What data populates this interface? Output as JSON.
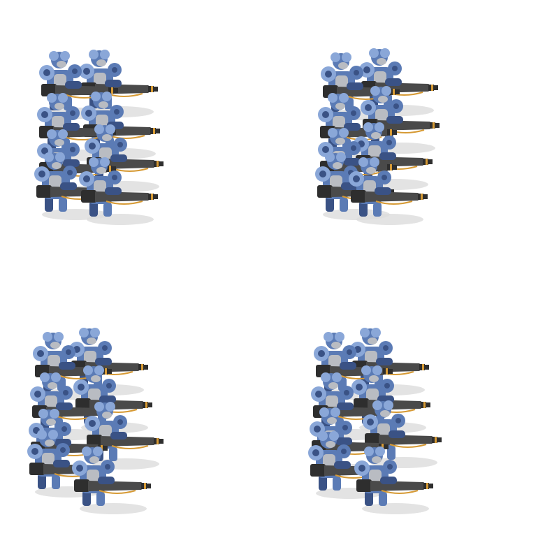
{
  "palette": {
    "armor": "#5b7bb5",
    "armor_light": "#8aa7d8",
    "armor_dark": "#3a5285",
    "metal_grey": "#b9bcc2",
    "weapon": "#4a4a4a",
    "weapon_dark": "#2e2e2e",
    "accent": "#d69a35",
    "shadow": "#dcdcdc"
  },
  "sprites": [
    {
      "name": "squad-frame-1",
      "soldiers": 8
    },
    {
      "name": "squad-frame-2",
      "soldiers": 8
    },
    {
      "name": "squad-frame-3",
      "soldiers": 8
    },
    {
      "name": "squad-frame-4",
      "soldiers": 8
    }
  ]
}
